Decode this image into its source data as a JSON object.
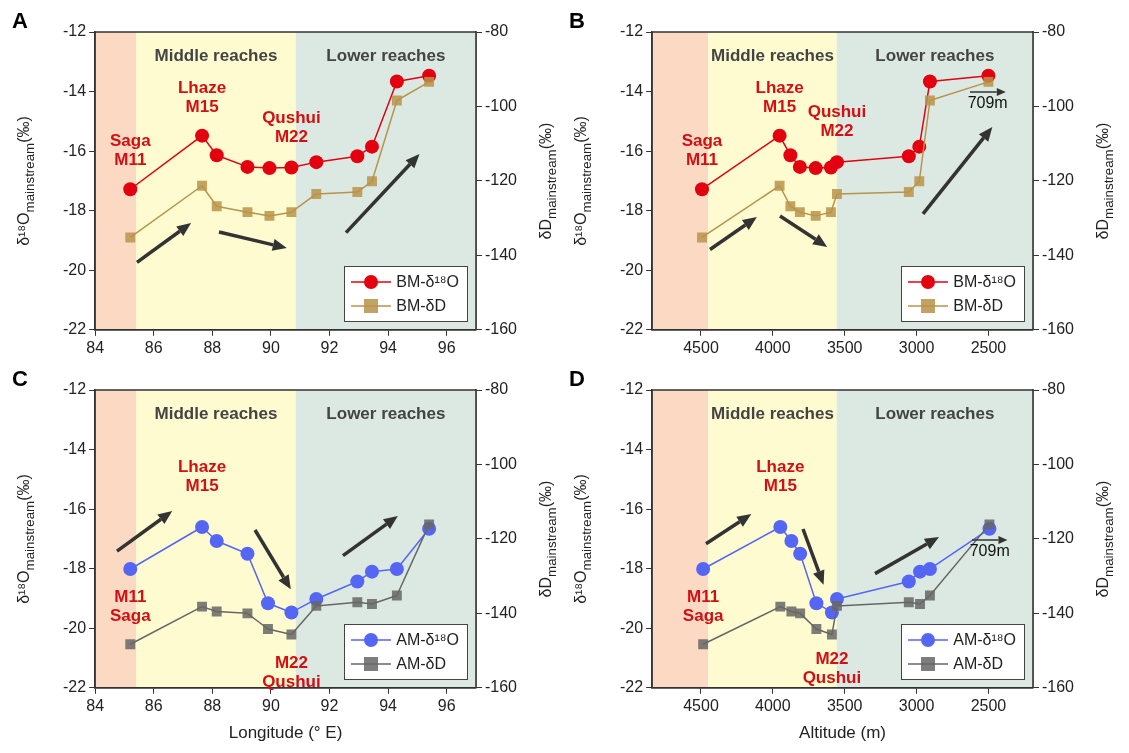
{
  "chart_data": [
    {
      "title": "A",
      "type": "line",
      "x": [
        85.2,
        87.65,
        88.15,
        89.2,
        89.95,
        90.7,
        91.55,
        92.95,
        93.45,
        94.3,
        95.4
      ],
      "xlim": [
        84,
        97
      ],
      "xticks": [
        84,
        86,
        88,
        90,
        92,
        94,
        96
      ],
      "ylim": [
        -22,
        -12
      ],
      "yticks": [
        -22,
        -20,
        -18,
        -16,
        -14,
        -12
      ],
      "y2lim": [
        -160,
        -80
      ],
      "y2ticks": [
        -160,
        -140,
        -120,
        -100,
        -80
      ],
      "ylabel": "δ¹⁸O$_{mainstream}$(‰)",
      "y2label": "δD$_{mainstream}$(‰)",
      "legend": "bottom right",
      "series": [
        {
          "name": "BM-δ¹⁸O",
          "color": "#e3000f",
          "marker": "circle",
          "values": [
            -17.28,
            -15.48,
            -16.14,
            -16.53,
            -16.57,
            -16.55,
            -16.37,
            -16.17,
            -15.85,
            -13.66,
            -13.47
          ]
        },
        {
          "name": "BM-δD",
          "color": "#b8934a",
          "marker": "square",
          "axis": "y2",
          "values": [
            -135.2,
            -121.3,
            -126.8,
            -128.4,
            -129.4,
            -128.4,
            -123.5,
            -123.0,
            -120.1,
            -98.4,
            -93.4
          ]
        }
      ],
      "bands": [
        {
          "axis": "x",
          "from": 84,
          "to": 85.4,
          "color": "#fcd9c2"
        },
        {
          "axis": "x",
          "from": 85.4,
          "to": 90.85,
          "label": "Middle reaches",
          "color": "#fefbd0"
        },
        {
          "axis": "x",
          "from": 90.85,
          "to": 97,
          "label": "Lower reaches",
          "color": "#dce9e3"
        }
      ],
      "annotations": [
        {
          "text": "Saga\nM11",
          "x": 85.2,
          "y": -17.28
        },
        {
          "text": "Lhaze\nM15",
          "x": 87.65,
          "y": -15.48
        },
        {
          "text": "Qushui\nM22",
          "x": 90.7,
          "y": -16.55
        }
      ]
    },
    {
      "title": "B",
      "type": "line",
      "x": [
        4493,
        3953,
        3878,
        3812,
        3702,
        3596,
        3554,
        3054,
        2981,
        2907,
        2500
      ],
      "xlim": [
        4840,
        2190
      ],
      "xticks": [
        4500,
        4000,
        3500,
        3000,
        2500
      ],
      "ylim": [
        -22,
        -12
      ],
      "yticks": [
        -22,
        -20,
        -18,
        -16,
        -14,
        -12
      ],
      "y2lim": [
        -160,
        -80
      ],
      "y2ticks": [
        -160,
        -140,
        -120,
        -100,
        -80
      ],
      "ylabel": "δ¹⁸O$_{mainstream}$(‰)",
      "y2label": "δD$_{mainstream}$(‰)",
      "legend": "bottom right",
      "series": [
        {
          "name": "BM-δ¹⁸O",
          "color": "#e3000f",
          "marker": "circle",
          "values": [
            -17.28,
            -15.48,
            -16.14,
            -16.53,
            -16.57,
            -16.55,
            -16.37,
            -16.17,
            -15.85,
            -13.66,
            -13.47
          ]
        },
        {
          "name": "BM-δD",
          "color": "#b8934a",
          "marker": "square",
          "axis": "y2",
          "values": [
            -135.2,
            -121.3,
            -126.8,
            -128.4,
            -129.4,
            -128.4,
            -123.5,
            -123.0,
            -120.1,
            -98.4,
            -93.4
          ]
        }
      ],
      "bands": [
        {
          "axis": "x",
          "from": 4840,
          "to": 4450,
          "color": "#fcd9c2"
        },
        {
          "axis": "x",
          "from": 4450,
          "to": 3555,
          "label": "Middle reaches",
          "color": "#fefbd0"
        },
        {
          "axis": "x",
          "from": 3555,
          "to": 2190,
          "label": "Lower reaches",
          "color": "#dce9e3"
        }
      ],
      "annotations": [
        {
          "text": "Saga\nM11",
          "x": 4493,
          "y": -17.28
        },
        {
          "text": "Lhaze\nM15",
          "x": 3953,
          "y": -15.48
        },
        {
          "text": "Qushui\nM22",
          "x": 3554,
          "y": -16.37
        },
        "709m"
      ]
    },
    {
      "title": "C",
      "type": "line",
      "x": [
        85.2,
        87.65,
        88.15,
        89.2,
        89.9,
        90.7,
        91.55,
        92.95,
        93.45,
        94.3,
        95.4
      ],
      "xlim": [
        84,
        97
      ],
      "xticks": [
        84,
        86,
        88,
        90,
        92,
        94,
        96
      ],
      "ylim": [
        -22,
        -12
      ],
      "yticks": [
        -22,
        -20,
        -18,
        -16,
        -14,
        -12
      ],
      "y2lim": [
        -160,
        -80
      ],
      "y2ticks": [
        -160,
        -140,
        -120,
        -100,
        -80
      ],
      "xlabel": "Longitude (° E)",
      "ylabel": "δ¹⁸O$_{mainstream}$(‰)",
      "y2label": "δD$_{mainstream}$(‰)",
      "legend": "bottom right",
      "series": [
        {
          "name": "AM-δ¹⁸O",
          "color": "#5566f5",
          "marker": "circle",
          "values": [
            -18.01,
            -16.6,
            -17.07,
            -17.5,
            -19.16,
            -19.47,
            -19.02,
            -18.43,
            -18.1,
            -18.01,
            -16.66
          ]
        },
        {
          "name": "AM-δD",
          "color": "#666666",
          "marker": "square",
          "axis": "y2",
          "values": [
            -148.3,
            -138.2,
            -139.5,
            -140.0,
            -144.2,
            -145.7,
            -138.0,
            -137.0,
            -137.5,
            -135.2,
            -116.1
          ]
        }
      ],
      "bands": [
        {
          "axis": "x",
          "from": 84,
          "to": 85.4,
          "color": "#fcd9c2"
        },
        {
          "axis": "x",
          "from": 85.4,
          "to": 90.85,
          "label": "Middle reaches",
          "color": "#fefbd0"
        },
        {
          "axis": "x",
          "from": 90.85,
          "to": 97,
          "label": "Lower reaches",
          "color": "#dce9e3"
        }
      ],
      "annotations": [
        {
          "text": "M11\nSaga",
          "x": 85.2,
          "y": -18.01
        },
        {
          "text": "Lhaze\nM15",
          "x": 87.65,
          "y": -16.6
        },
        {
          "text": "M22\nQushui",
          "x": 90.7,
          "y": -19.47
        }
      ]
    },
    {
      "title": "D",
      "type": "line",
      "x": [
        4485,
        3948,
        3871,
        3810,
        3697,
        3589,
        3554,
        3054,
        2976,
        2907,
        2493
      ],
      "xlim": [
        4840,
        2190
      ],
      "xticks": [
        4500,
        4000,
        3500,
        3000,
        2500
      ],
      "ylim": [
        -22,
        -12
      ],
      "yticks": [
        -22,
        -20,
        -18,
        -16,
        -14,
        -12
      ],
      "y2lim": [
        -160,
        -80
      ],
      "y2ticks": [
        -160,
        -140,
        -120,
        -100,
        -80
      ],
      "xlabel": "Altitude (m)",
      "ylabel": "δ¹⁸O$_{mainstream}$(‰)",
      "y2label": "δD$_{mainstream}$(‰)",
      "legend": "bottom right",
      "series": [
        {
          "name": "AM-δ¹⁸O",
          "color": "#5566f5",
          "marker": "circle",
          "values": [
            -18.01,
            -16.6,
            -17.07,
            -17.5,
            -19.16,
            -19.47,
            -19.02,
            -18.43,
            -18.1,
            -18.01,
            -16.66
          ]
        },
        {
          "name": "AM-δD",
          "color": "#666666",
          "marker": "square",
          "axis": "y2",
          "values": [
            -148.3,
            -138.2,
            -139.5,
            -140.0,
            -144.2,
            -145.7,
            -138.0,
            -137.0,
            -137.5,
            -135.2,
            -116.1
          ]
        }
      ],
      "bands": [
        {
          "axis": "x",
          "from": 4840,
          "to": 4450,
          "color": "#fcd9c2"
        },
        {
          "axis": "x",
          "from": 4450,
          "to": 3555,
          "label": "Middle reaches",
          "color": "#fefbd0"
        },
        {
          "axis": "x",
          "from": 3555,
          "to": 2190,
          "label": "Lower reaches",
          "color": "#dce9e3"
        }
      ],
      "annotations": [
        {
          "text": "M11\nSaga",
          "x": 4485,
          "y": -18.01
        },
        {
          "text": "Lhaze\nM15",
          "x": 3948,
          "y": -16.6
        },
        {
          "text": "M22\nQushui",
          "x": 3589,
          "y": -19.47
        },
        "709m"
      ]
    }
  ]
}
